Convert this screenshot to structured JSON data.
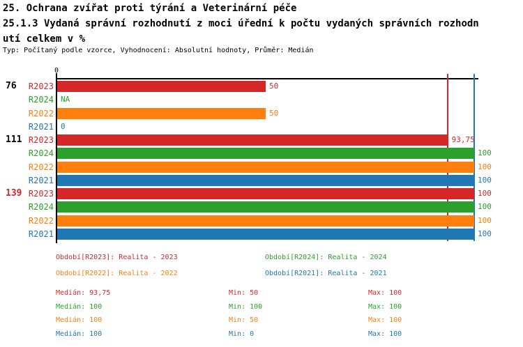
{
  "header": {
    "title_line1": "25. Ochrana zvířat proti týrání a Veterinární péče",
    "title_line2": "25.1.3 Vydaná správní rozhodnutí z moci úřední k počtu vydaných správních rozhodn",
    "title_line3": "utí celkem v %",
    "subtitle": "Typ: Počítaný podle vzorce, Vyhodnocení: Absolutní hodnoty, Průměr: Medián"
  },
  "colors": {
    "R2023": "#d62728",
    "R2024": "#2ca02c",
    "R2022": "#ff7f0e",
    "R2021": "#1f77b4",
    "axis": "#000000",
    "group_label_highlight": "#d62728"
  },
  "chart_data": {
    "type": "bar",
    "orientation": "horizontal",
    "title": "25.1.3 Vydaná správní rozhodnutí z moci úřední k počtu vydaných správních rozhodnutí celkem v %",
    "xlabel": "",
    "ylabel": "",
    "xlim": [
      0,
      101
    ],
    "axis_tick_label": "0",
    "grid": false,
    "legend_position": "bottom",
    "series_names": [
      "R2023",
      "R2024",
      "R2022",
      "R2021"
    ],
    "reference_lines": [
      {
        "name": "median-line",
        "value": 93.75,
        "color": "#d62728"
      },
      {
        "name": "max-line",
        "value": 100,
        "color": "#1f77b4"
      }
    ],
    "groups": [
      {
        "label": "76",
        "label_color": "#000000",
        "bars": [
          {
            "series": "R2023",
            "value": 50,
            "label": "50"
          },
          {
            "series": "R2024",
            "value": null,
            "label": "NA"
          },
          {
            "series": "R2022",
            "value": 50,
            "label": "50"
          },
          {
            "series": "R2021",
            "value": 0,
            "label": "0"
          }
        ]
      },
      {
        "label": "111",
        "label_color": "#000000",
        "bars": [
          {
            "series": "R2023",
            "value": 93.75,
            "label": "93,75"
          },
          {
            "series": "R2024",
            "value": 100,
            "label": "100"
          },
          {
            "series": "R2022",
            "value": 100,
            "label": "100"
          },
          {
            "series": "R2021",
            "value": 100,
            "label": "100"
          }
        ]
      },
      {
        "label": "139",
        "label_color": "#d62728",
        "bars": [
          {
            "series": "R2023",
            "value": 100,
            "label": "100"
          },
          {
            "series": "R2024",
            "value": 100,
            "label": "100"
          },
          {
            "series": "R2022",
            "value": 100,
            "label": "100"
          },
          {
            "series": "R2021",
            "value": 100,
            "label": "100"
          }
        ]
      }
    ]
  },
  "legend": [
    {
      "series": "R2023",
      "text": "Období[R2023]: Realita - 2023",
      "color": "#d62728",
      "col": 0,
      "row": 0
    },
    {
      "series": "R2024",
      "text": "Období[R2024]: Realita - 2024",
      "color": "#2ca02c",
      "col": 1,
      "row": 0
    },
    {
      "series": "R2022",
      "text": "Období[R2022]: Realita - 2022",
      "color": "#ff7f0e",
      "col": 0,
      "row": 1
    },
    {
      "series": "R2021",
      "text": "Období[R2021]: Realita - 2021",
      "color": "#1f77b4",
      "col": 1,
      "row": 1
    }
  ],
  "stats": [
    {
      "series": "R2023",
      "color": "#d62728",
      "median": "Medián: 93,75",
      "min": "Min: 50",
      "max": "Max: 100"
    },
    {
      "series": "R2024",
      "color": "#2ca02c",
      "median": "Medián: 100",
      "min": "Min: 100",
      "max": "Max: 100"
    },
    {
      "series": "R2022",
      "color": "#ff7f0e",
      "median": "Medián: 100",
      "min": "Min: 50",
      "max": "Max: 100"
    },
    {
      "series": "R2021",
      "color": "#1f77b4",
      "median": "Medián: 100",
      "min": "Min: 0",
      "max": "Max: 100"
    }
  ]
}
